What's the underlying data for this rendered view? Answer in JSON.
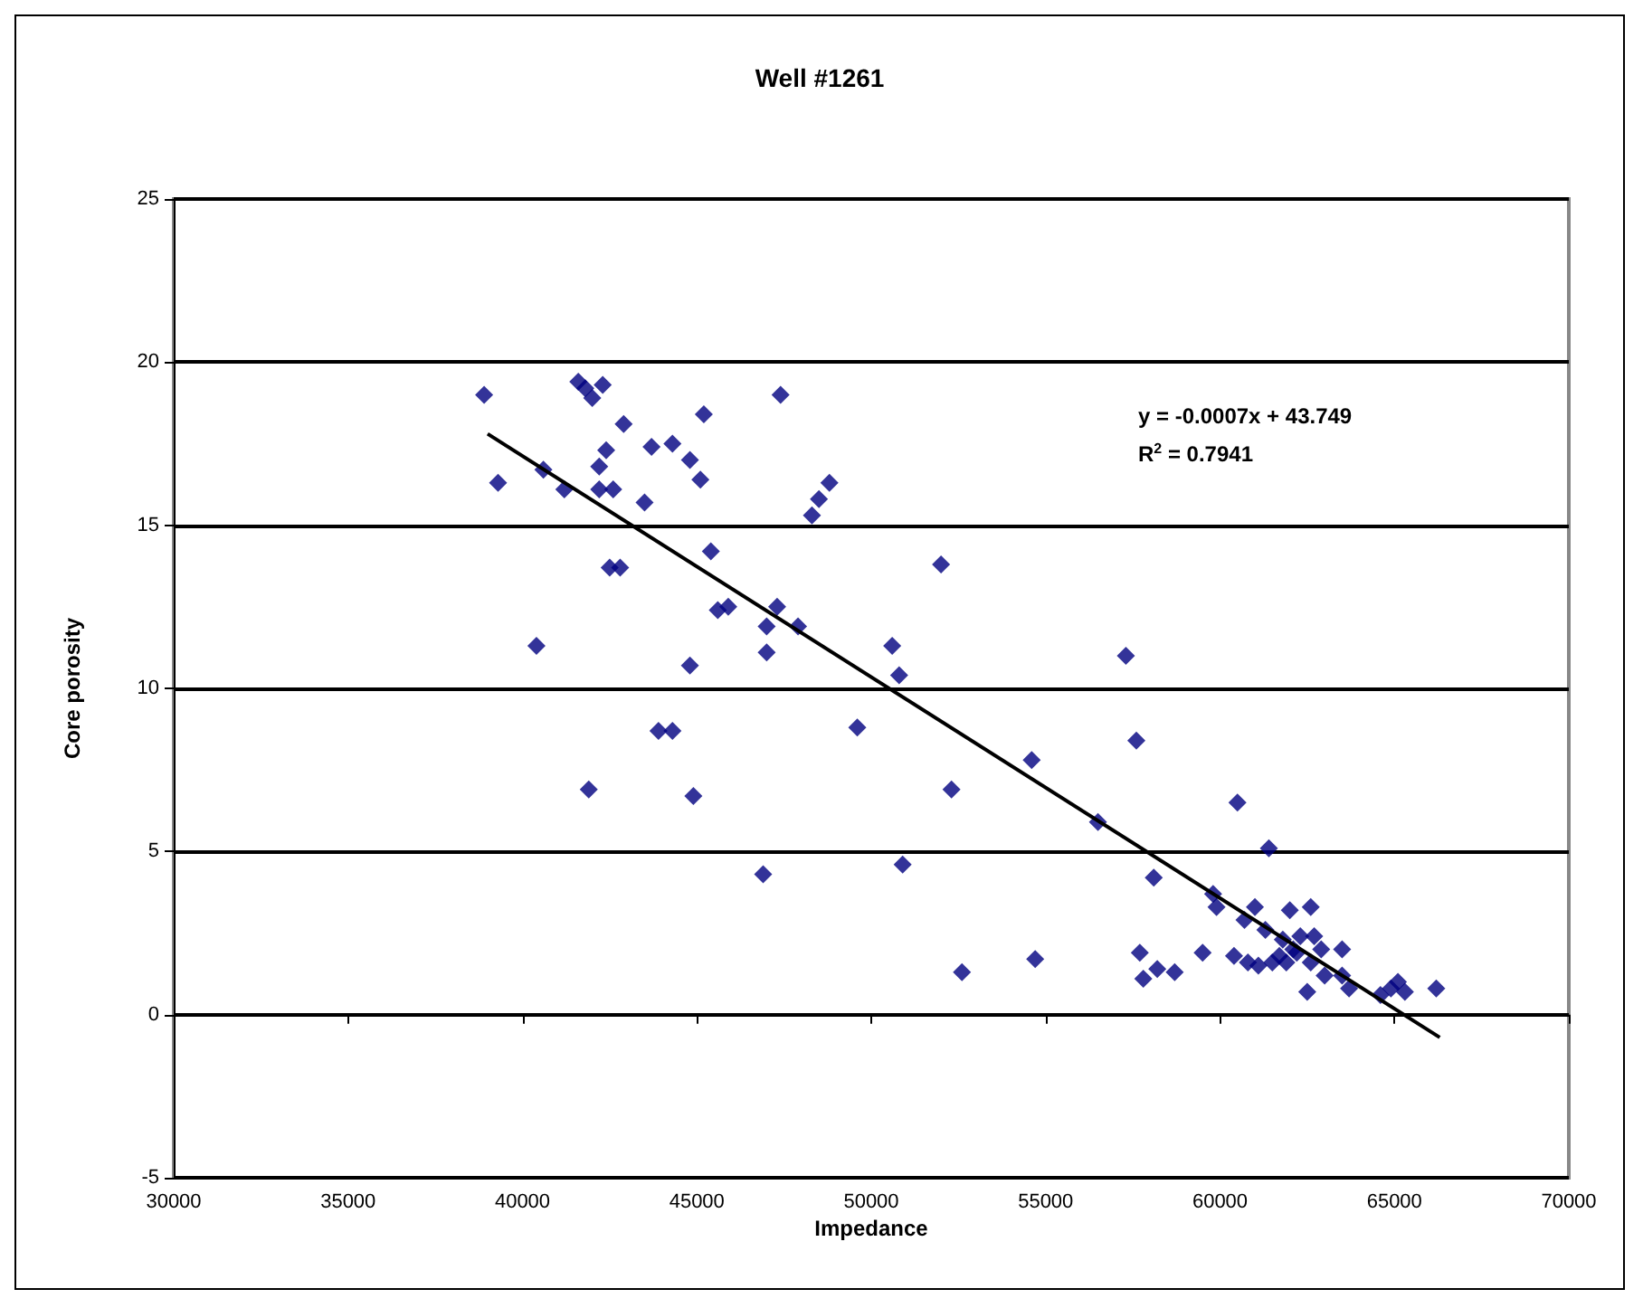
{
  "chart_data": {
    "type": "scatter",
    "title": "Well #1261",
    "xlabel": "Impedance",
    "ylabel": "Core porosity",
    "annotations": [
      "y = -0.0007x + 43.749",
      "R$^{2}$ = 0.7941"
    ],
    "xlim": [
      30000,
      70000
    ],
    "xticks": [
      30000,
      35000,
      40000,
      45000,
      50000,
      55000,
      60000,
      65000,
      70000
    ],
    "ylim": [
      -5,
      25
    ],
    "yticks": [
      -5,
      0,
      5,
      10,
      15,
      20,
      25
    ],
    "grid": "y",
    "marker": "diamond",
    "series": [
      {
        "color": "#000080",
        "x": [
          38900,
          39300,
          40400,
          40600,
          41200,
          41600,
          41800,
          41900,
          42000,
          42200,
          42200,
          42300,
          42400,
          42500,
          42600,
          42800,
          42900,
          43500,
          43700,
          43900,
          44300,
          44300,
          44800,
          44800,
          44900,
          45100,
          45200,
          45400,
          45600,
          45900,
          46900,
          47000,
          47000,
          47300,
          47400,
          47900,
          48300,
          48500,
          48800,
          49600,
          50600,
          50800,
          50900,
          52000,
          52300,
          52600,
          54600,
          54700,
          56500,
          57300,
          57600,
          57700,
          57800,
          58100,
          58200,
          58700,
          59500,
          59800,
          59900,
          60400,
          60500,
          60700,
          60800,
          61000,
          61100,
          61300,
          61400,
          61500,
          61700,
          61800,
          61900,
          62000,
          62100,
          62200,
          62300,
          62500,
          62600,
          62600,
          62700,
          62900,
          63000,
          63500,
          63500,
          63700,
          64600,
          64900,
          65100,
          65300,
          66200
        ],
        "values": [
          19.0,
          16.3,
          11.3,
          16.7,
          16.1,
          19.4,
          19.2,
          6.9,
          18.9,
          16.1,
          16.8,
          19.3,
          17.3,
          13.7,
          16.1,
          13.7,
          18.1,
          15.7,
          17.4,
          8.7,
          17.5,
          8.7,
          10.7,
          17.0,
          6.7,
          16.4,
          18.4,
          14.2,
          12.4,
          12.5,
          4.3,
          11.9,
          11.1,
          12.5,
          19.0,
          11.9,
          15.3,
          15.8,
          16.3,
          8.8,
          11.3,
          10.4,
          4.6,
          13.8,
          6.9,
          1.3,
          7.8,
          1.7,
          5.9,
          11.0,
          8.4,
          1.9,
          1.1,
          4.2,
          1.4,
          1.3,
          1.9,
          3.7,
          3.3,
          1.8,
          6.5,
          2.9,
          1.6,
          3.3,
          1.5,
          2.6,
          5.1,
          1.6,
          1.8,
          2.3,
          1.6,
          3.2,
          2.0,
          1.9,
          2.4,
          0.7,
          3.3,
          1.6,
          2.4,
          2.0,
          1.2,
          2.0,
          1.2,
          0.8,
          0.6,
          0.8,
          1.0,
          0.7,
          0.8
        ]
      },
      {
        "type": "line",
        "color": "#000000",
        "marker": "none",
        "line_style": "solid",
        "x": [
          39000,
          66300
        ],
        "values": [
          17.8,
          -0.7
        ]
      }
    ]
  }
}
